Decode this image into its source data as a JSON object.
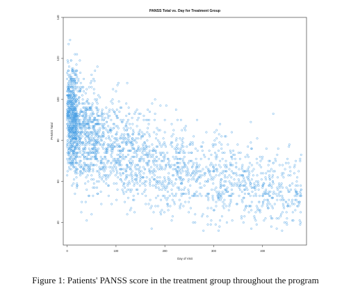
{
  "caption": "Figure 1: Patients' PANSS score in the treatment group throughout the program",
  "chart_data": {
    "type": "scatter",
    "title": "PANSS Total vs. Day for Treatment Group",
    "xlabel": "Day of Visit",
    "ylabel": "PANSS Total",
    "xlim": [
      -8,
      490
    ],
    "ylim": [
      29,
      140
    ],
    "xticks": [
      0,
      100,
      200,
      300,
      400
    ],
    "yticks": [
      40,
      60,
      80,
      100,
      120,
      140
    ],
    "marker": "open-circle",
    "color": "#4a9fe3",
    "grid": false,
    "point_count_estimate": 2600,
    "density_profile": {
      "x": [
        0,
        10,
        25,
        50,
        75,
        100,
        150,
        200,
        250,
        300,
        350,
        400,
        450,
        480
      ],
      "y_center": [
        93,
        90,
        86,
        82,
        78,
        75,
        71,
        68,
        65,
        63,
        60,
        57,
        55,
        53
      ],
      "y_spread": [
        12,
        13,
        13,
        13,
        13,
        12,
        12,
        11,
        11,
        11,
        10,
        10,
        9,
        9
      ],
      "y_max": [
        137,
        136,
        134,
        132,
        128,
        124,
        116,
        110,
        106,
        104,
        103,
        101,
        100,
        98
      ],
      "y_min": [
        45,
        43,
        42,
        40,
        38,
        36,
        35,
        34,
        34,
        34,
        34,
        35,
        36,
        38
      ]
    }
  }
}
